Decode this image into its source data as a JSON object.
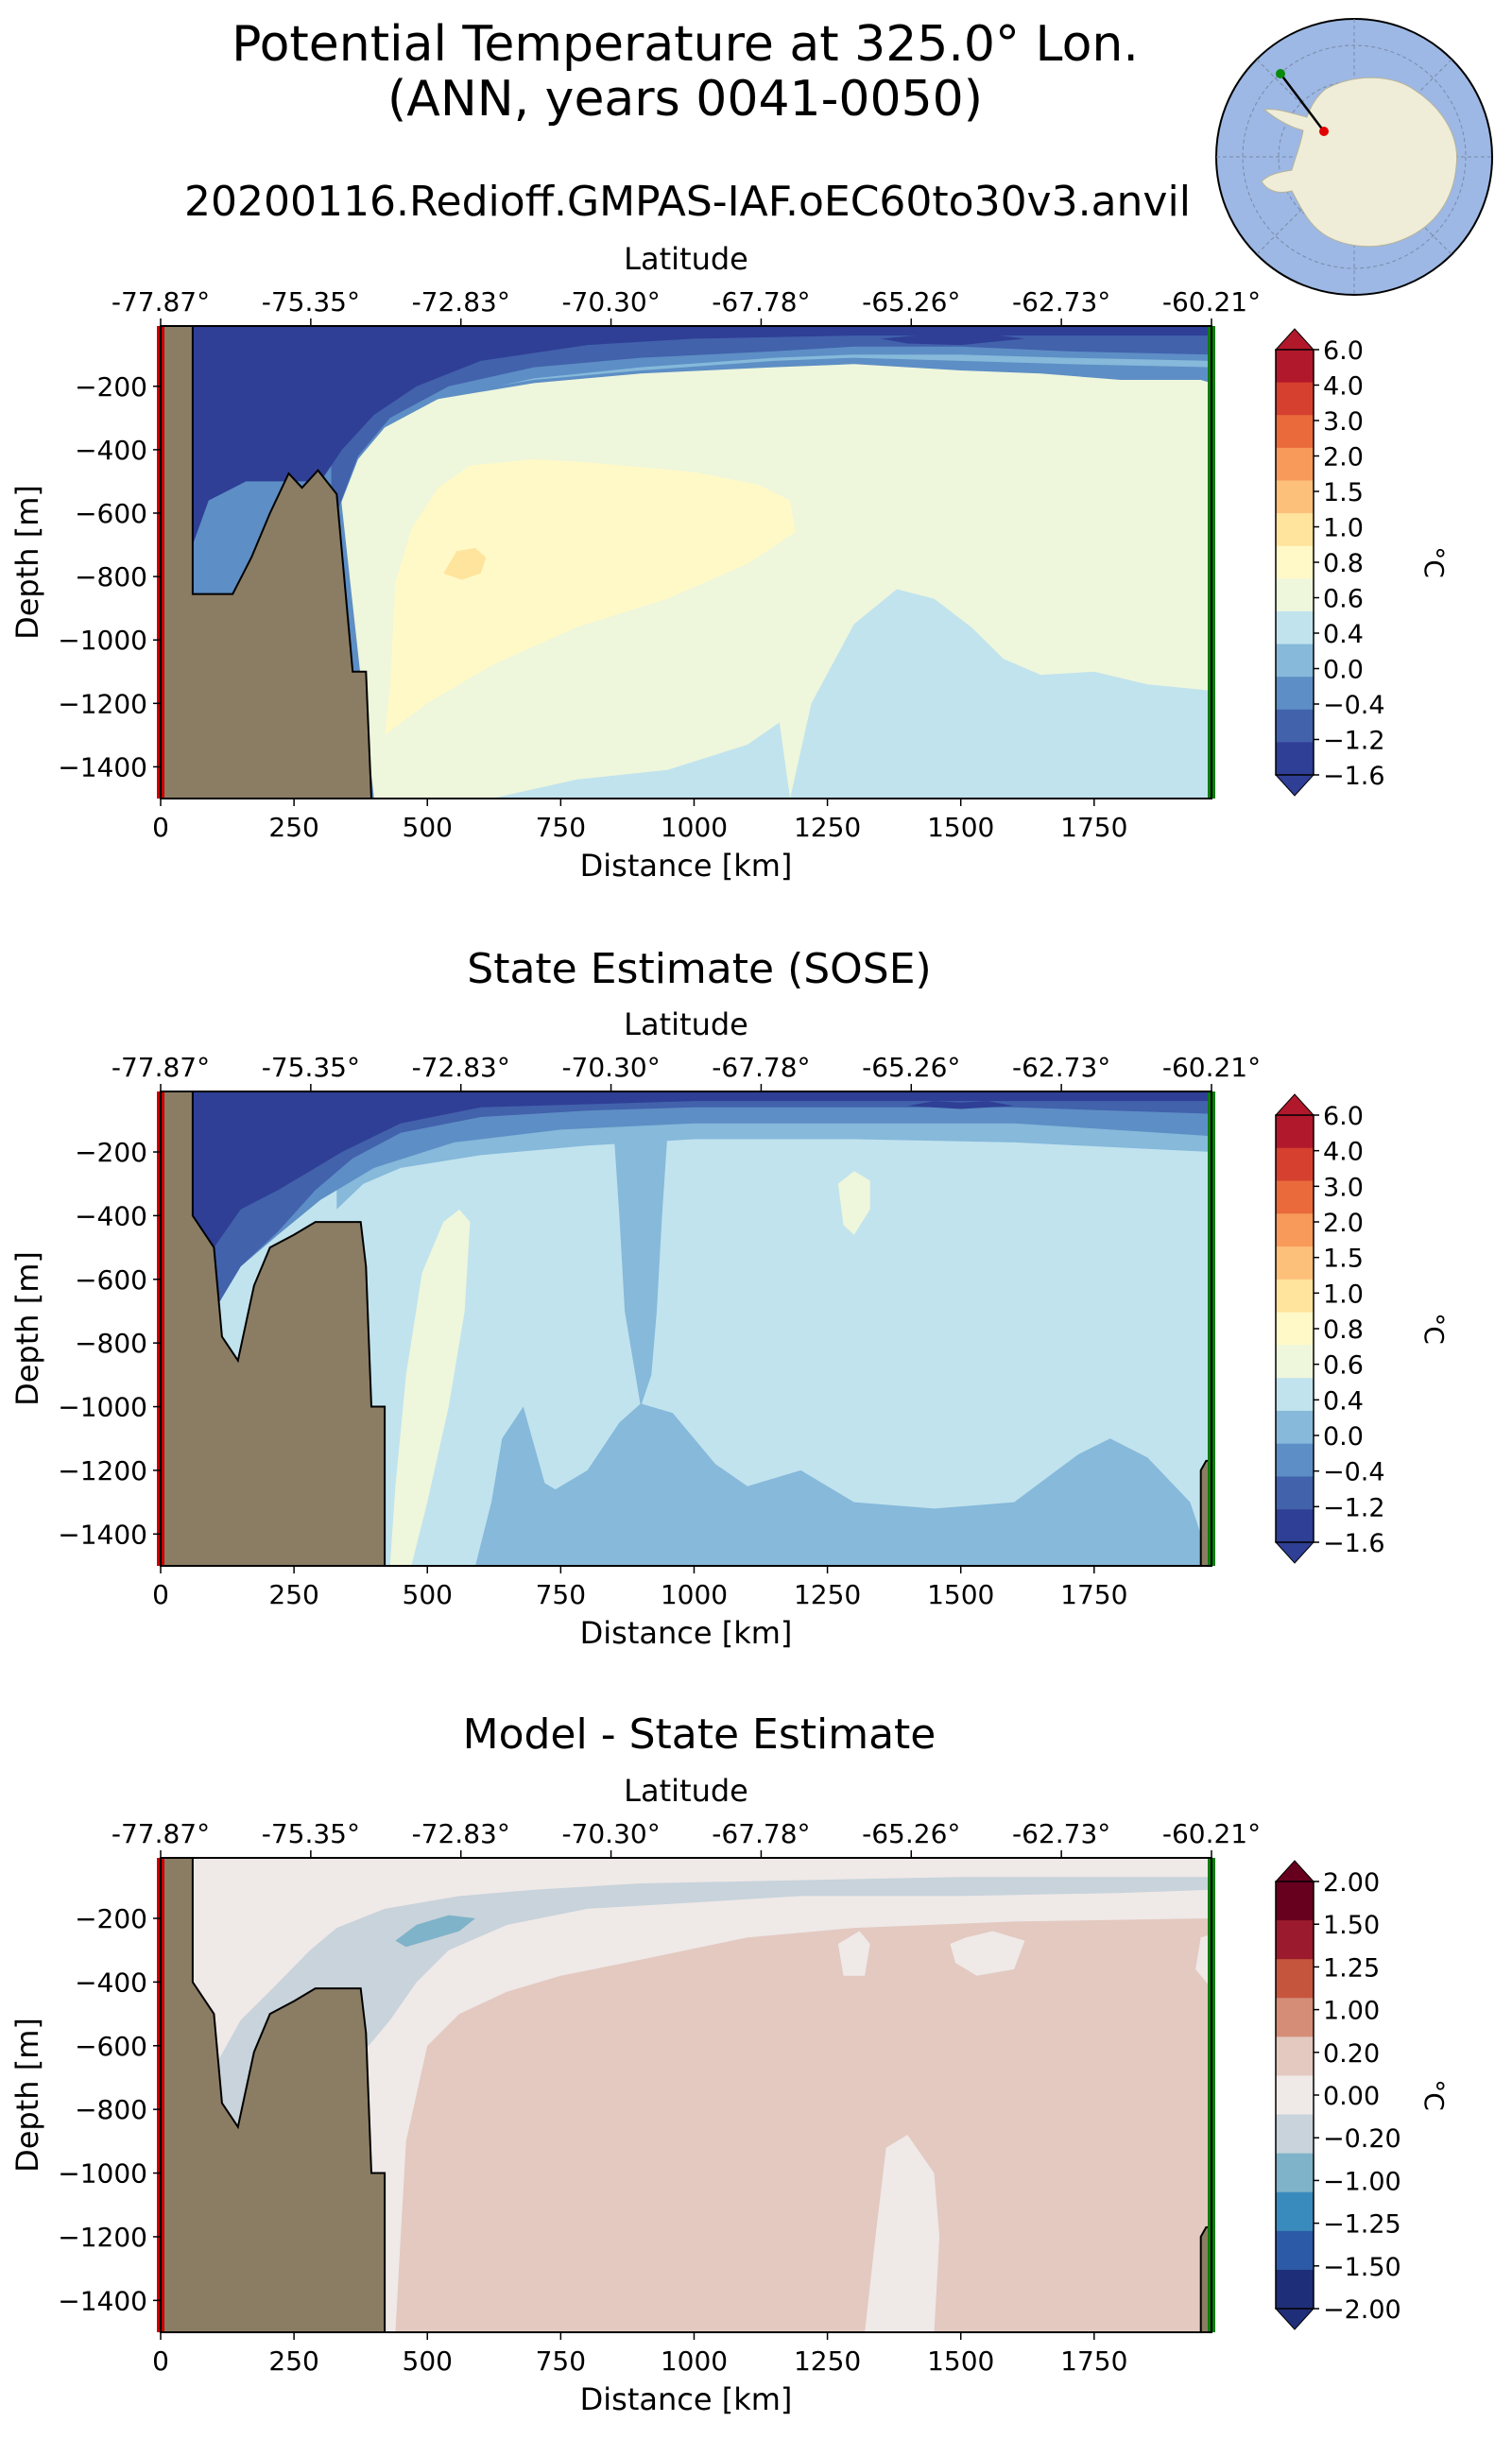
{
  "header": {
    "title_line1": "Potential Temperature at 325.0° Lon.",
    "title_line2": "(ANN, years 0041-0050)",
    "run_name": "20200116.Redioff.GMPAS-IAF.oEC60to30v3.anvil"
  },
  "colors": {
    "land": "#8b7d63",
    "start_marker": "#c80000",
    "end_marker": "#0a7d0a"
  },
  "chart_data": [
    {
      "type": "contour",
      "title": "",
      "xlabel": "Distance [km]",
      "ylabel": "Depth [m]",
      "top_xlabel": "Latitude",
      "xlim": [
        0,
        1970
      ],
      "ylim": [
        -1500,
        -10
      ],
      "x_ticks": [
        0,
        250,
        500,
        750,
        1000,
        1250,
        1500,
        1750
      ],
      "y_ticks": [
        -200,
        -400,
        -600,
        -800,
        -1000,
        -1200,
        -1400
      ],
      "lat_ticks": [
        "-77.87°",
        "-75.35°",
        "-72.83°",
        "-70.30°",
        "-67.78°",
        "-65.26°",
        "-62.73°",
        "-60.21°"
      ],
      "colorbar": {
        "label": "°C",
        "levels": [
          "6.0",
          "4.0",
          "3.0",
          "2.0",
          "1.5",
          "1.0",
          "0.8",
          "0.6",
          "0.4",
          "0.0",
          "−0.4",
          "−1.2",
          "−1.6"
        ],
        "colors": [
          "#b2182b",
          "#d6402e",
          "#ea6a3c",
          "#f89a5a",
          "#fdc07a",
          "#fee49c",
          "#fff9c8",
          "#eef6dc",
          "#c1e3ee",
          "#86b9da",
          "#5d8ec5",
          "#4262ac",
          "#2f3f95"
        ]
      },
      "bathymetry": [
        [
          0,
          -10
        ],
        [
          60,
          -10
        ],
        [
          60,
          -855
        ],
        [
          135,
          -855
        ],
        [
          170,
          -740
        ],
        [
          205,
          -600
        ],
        [
          240,
          -475
        ],
        [
          265,
          -520
        ],
        [
          295,
          -465
        ],
        [
          330,
          -540
        ],
        [
          360,
          -1100
        ],
        [
          385,
          -1100
        ],
        [
          395,
          -1500
        ]
      ]
    },
    {
      "type": "contour",
      "title": "State Estimate (SOSE)",
      "xlabel": "Distance [km]",
      "ylabel": "Depth [m]",
      "top_xlabel": "Latitude",
      "xlim": [
        0,
        1970
      ],
      "ylim": [
        -1500,
        -10
      ],
      "x_ticks": [
        0,
        250,
        500,
        750,
        1000,
        1250,
        1500,
        1750
      ],
      "y_ticks": [
        -200,
        -400,
        -600,
        -800,
        -1000,
        -1200,
        -1400
      ],
      "lat_ticks": [
        "-77.87°",
        "-75.35°",
        "-72.83°",
        "-70.30°",
        "-67.78°",
        "-65.26°",
        "-62.73°",
        "-60.21°"
      ],
      "colorbar": {
        "label": "°C",
        "levels": [
          "6.0",
          "4.0",
          "3.0",
          "2.0",
          "1.5",
          "1.0",
          "0.8",
          "0.6",
          "0.4",
          "0.0",
          "−0.4",
          "−1.2",
          "−1.6"
        ],
        "colors": [
          "#b2182b",
          "#d6402e",
          "#ea6a3c",
          "#f89a5a",
          "#fdc07a",
          "#fee49c",
          "#fff9c8",
          "#eef6dc",
          "#c1e3ee",
          "#86b9da",
          "#5d8ec5",
          "#4262ac",
          "#2f3f95"
        ]
      },
      "bathymetry": [
        [
          0,
          -10
        ],
        [
          60,
          -10
        ],
        [
          60,
          -400
        ],
        [
          100,
          -500
        ],
        [
          115,
          -780
        ],
        [
          145,
          -855
        ],
        [
          175,
          -620
        ],
        [
          205,
          -500
        ],
        [
          250,
          -460
        ],
        [
          290,
          -420
        ],
        [
          375,
          -420
        ],
        [
          385,
          -560
        ],
        [
          395,
          -1000
        ],
        [
          420,
          -1000
        ],
        [
          420,
          -1500
        ]
      ]
    },
    {
      "type": "contour",
      "title": "Model - State Estimate",
      "xlabel": "Distance [km]",
      "ylabel": "Depth [m]",
      "top_xlabel": "Latitude",
      "xlim": [
        0,
        1970
      ],
      "ylim": [
        -1500,
        -10
      ],
      "x_ticks": [
        0,
        250,
        500,
        750,
        1000,
        1250,
        1500,
        1750
      ],
      "y_ticks": [
        -200,
        -400,
        -600,
        -800,
        -1000,
        -1200,
        -1400
      ],
      "lat_ticks": [
        "-77.87°",
        "-75.35°",
        "-72.83°",
        "-70.30°",
        "-67.78°",
        "-65.26°",
        "-62.73°",
        "-60.21°"
      ],
      "colorbar": {
        "label": "°C",
        "levels": [
          "2.00",
          "1.50",
          "1.25",
          "1.00",
          "0.20",
          "0.00",
          "−0.20",
          "−1.00",
          "−1.25",
          "−1.50",
          "−2.00"
        ],
        "colors": [
          "#67001f",
          "#9b1a2d",
          "#c6553d",
          "#d58d78",
          "#e3c9c0",
          "#efe9e8",
          "#c8d3db",
          "#7fb3c9",
          "#3a8bbd",
          "#2c5aa6",
          "#1f2e78"
        ]
      },
      "bathymetry": [
        [
          0,
          -10
        ],
        [
          60,
          -10
        ],
        [
          60,
          -400
        ],
        [
          100,
          -500
        ],
        [
          115,
          -780
        ],
        [
          145,
          -855
        ],
        [
          175,
          -620
        ],
        [
          205,
          -500
        ],
        [
          250,
          -460
        ],
        [
          290,
          -420
        ],
        [
          375,
          -420
        ],
        [
          385,
          -560
        ],
        [
          395,
          -1000
        ],
        [
          420,
          -1000
        ],
        [
          420,
          -1500
        ]
      ]
    }
  ]
}
